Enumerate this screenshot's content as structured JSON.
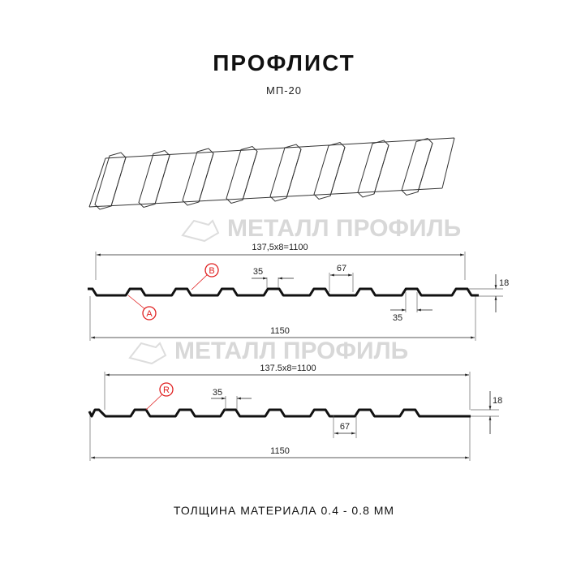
{
  "header": {
    "title": "ПРОФЛИСТ",
    "subtitle": "МП-20"
  },
  "watermark": "МЕТАЛЛ ПРОФИЛЬ",
  "profile_1": {
    "pitch_label": "137,5x8=1100",
    "width_label": "1150",
    "crest_label": "35",
    "valley_label": "67",
    "bottom_label": "35",
    "height_label": "18",
    "markers": [
      "B",
      "A"
    ]
  },
  "profile_2": {
    "pitch_label": "137.5x8=1100",
    "width_label": "1150",
    "crest_label": "35",
    "valley_label": "67",
    "height_label": "18",
    "markers": [
      "R"
    ]
  },
  "footer": {
    "thickness": "ТОЛЩИНА МАТЕРИАЛА 0.4 - 0.8 ММ"
  },
  "colors": {
    "profile": "#111111",
    "marker": "#e02020",
    "watermark": "#d8d8d8"
  }
}
